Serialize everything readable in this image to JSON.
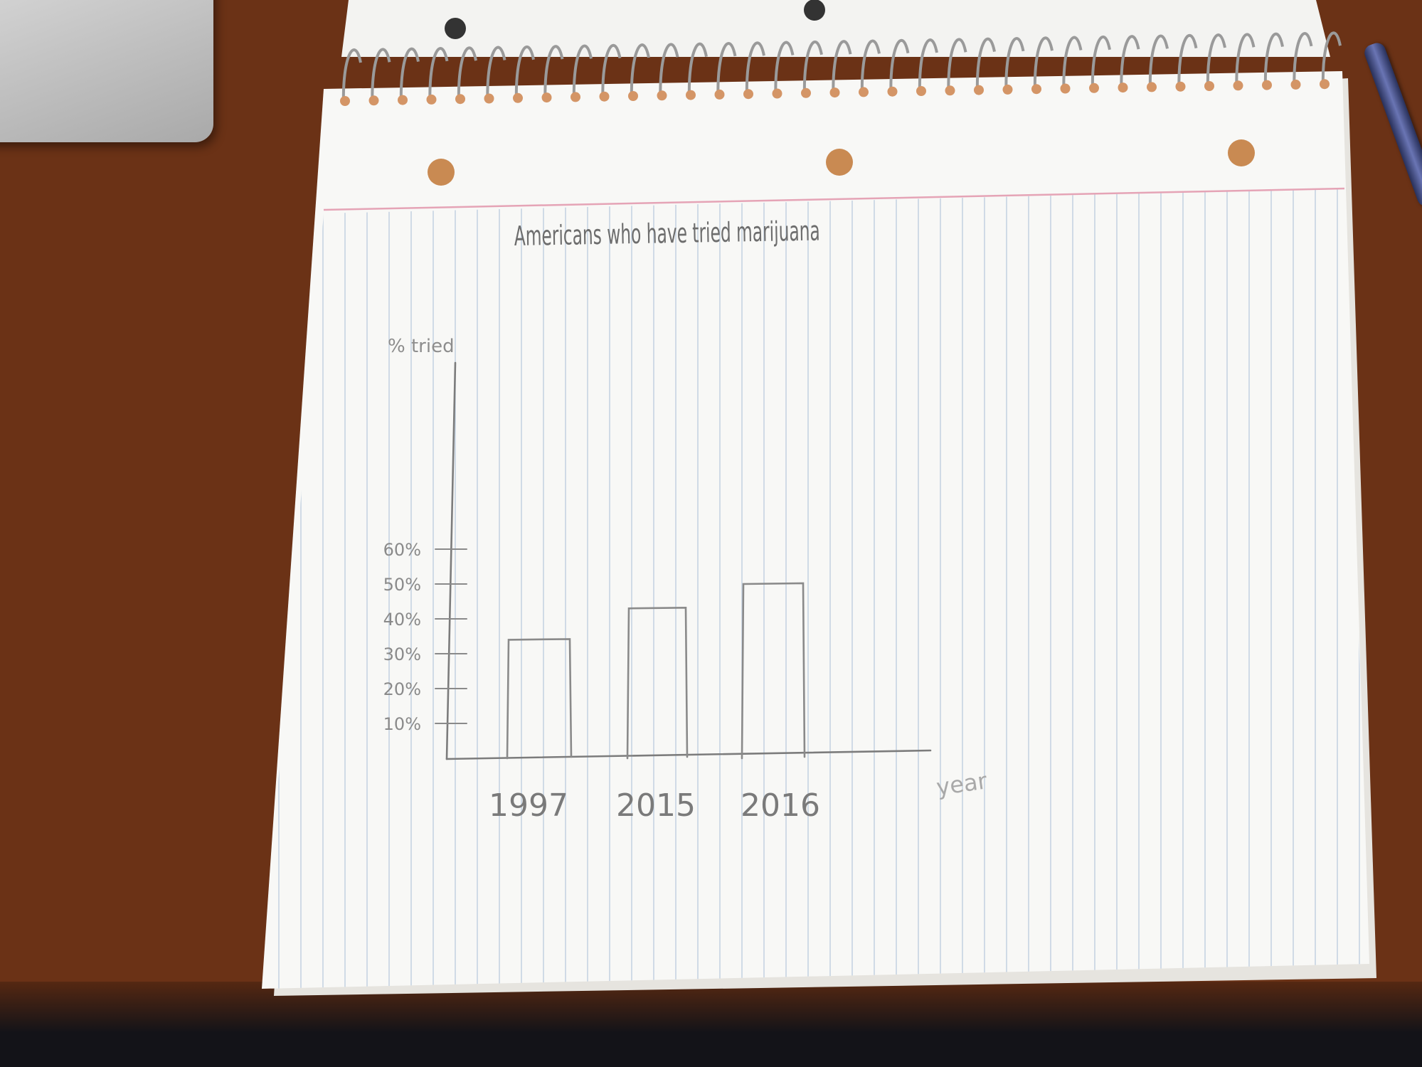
{
  "chart_data": {
    "type": "bar",
    "title": "Americans who have tried marijuana",
    "ylabel": "% tried",
    "xlabel": "year",
    "categories": [
      "1997",
      "2015",
      "2016"
    ],
    "values": [
      34,
      43,
      50
    ],
    "yticks": [
      "10%",
      "20%",
      "30%",
      "40%",
      "50%",
      "60%"
    ],
    "ylim": [
      0,
      60
    ],
    "grid": false,
    "ink_color": "#8a8a8a"
  }
}
